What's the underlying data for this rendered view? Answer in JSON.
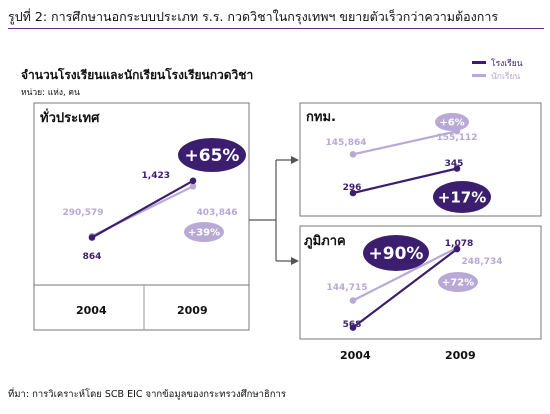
{
  "figure_title": "รูปที่ 2: การศึกษานอกระบบประเภท ร.ร. กวดวิชาในกรุงเทพฯ ขยายตัวเร็วกว่าความต้องการ",
  "source_note": "ที่มา: การวิเคราะห์โดย SCB EIC จากข้อมูลของกระทรวงศึกษาธิการ",
  "colors": {
    "schools": "#3b1f6e",
    "students": "#b8a9d6",
    "rule": "#5c2d82",
    "badge_dark": "#3b1f6e",
    "badge_light": "#b8a9d6"
  },
  "chart_data": {
    "type": "line",
    "title": "จำนวนโรงเรียนและนักเรียนโรงเรียนกวดวิชา",
    "unit_label": "หน่วย: แห่ง, คน",
    "legend": [
      "โรงเรียน",
      "นักเรียน"
    ],
    "legend_position": "top-right",
    "categories": [
      "2004",
      "2009"
    ],
    "panels": [
      {
        "name": "ทั่วประเทศ",
        "series": [
          {
            "name": "โรงเรียน",
            "values": [
              864,
              1423
            ],
            "growth": "+65%"
          },
          {
            "name": "นักเรียน",
            "values": [
              290579,
              403846
            ],
            "growth": "+39%"
          }
        ],
        "labels": {
          "schools": [
            "864",
            "1,423"
          ],
          "students": [
            "290,579",
            "403,846"
          ]
        }
      },
      {
        "name": "กทม.",
        "series": [
          {
            "name": "โรงเรียน",
            "values": [
              296,
              345
            ],
            "growth": "+17%"
          },
          {
            "name": "นักเรียน",
            "values": [
              145864,
              155112
            ],
            "growth": "+6%"
          }
        ],
        "labels": {
          "schools": [
            "296",
            "345"
          ],
          "students": [
            "145,864",
            "155,112"
          ]
        }
      },
      {
        "name": "ภูมิภาค",
        "series": [
          {
            "name": "โรงเรียน",
            "values": [
              568,
              1078
            ],
            "growth": "+90%"
          },
          {
            "name": "นักเรียน",
            "values": [
              144715,
              248734
            ],
            "growth": "+72%"
          }
        ],
        "labels": {
          "schools": [
            "568",
            "1,078"
          ],
          "students": [
            "144,715",
            "248,734"
          ]
        }
      }
    ]
  }
}
